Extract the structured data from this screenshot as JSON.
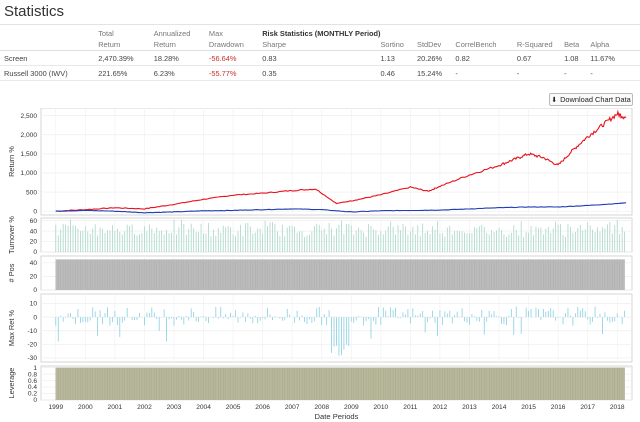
{
  "page_title": "Statistics",
  "table": {
    "header_top": [
      "",
      "Total",
      "Annualized",
      "Max",
      "Risk Statistics (MONTHLY Period)",
      "",
      "",
      "",
      "",
      "",
      ""
    ],
    "header_bottom": [
      "",
      "Return",
      "Return",
      "Drawdown",
      "Sharpe",
      "Sortino",
      "StdDev",
      "CorrelBench",
      "R-Squared",
      "Beta",
      "Alpha"
    ],
    "rows": [
      [
        "Screen",
        "2,470.39%",
        "18.28%",
        "-56.64%",
        "0.83",
        "1.13",
        "20.26%",
        "0.82",
        "0.67",
        "1.08",
        "11.67%"
      ],
      [
        "Russell 3000 (IWV)",
        "221.65%",
        "6.23%",
        "-55.77%",
        "0.35",
        "0.46",
        "15.24%",
        "-",
        "-",
        "-",
        "-"
      ]
    ]
  },
  "download_button": {
    "label": "Download Chart Data",
    "icon": "download-icon"
  },
  "colors": {
    "screen": "#e8101a",
    "benchmark": "#1f3fb8",
    "turnover": "#a9d6c6",
    "positions": "#bbbbbb",
    "maxret": "#86cfe3",
    "leverage": "#b7b79b"
  },
  "chart_data": [
    {
      "type": "line",
      "ylabel": "Return %",
      "yticks": [
        0,
        500,
        1000,
        1500,
        2000,
        2500
      ],
      "ylim": [
        -100,
        2700
      ],
      "series": [
        {
          "name": "Screen",
          "x": [
            1999,
            2000,
            2001,
            2002,
            2003,
            2004,
            2005,
            2006,
            2007,
            2007.8,
            2008.5,
            2009.2,
            2010,
            2011,
            2011.6,
            2012,
            2013,
            2014,
            2014.5,
            2015,
            2015.5,
            2016,
            2016.5,
            2017,
            2017.5,
            2018,
            2018.3
          ],
          "values": [
            0,
            40,
            90,
            60,
            180,
            310,
            420,
            470,
            540,
            580,
            200,
            300,
            430,
            630,
            520,
            650,
            950,
            1200,
            1350,
            1500,
            1400,
            1200,
            1600,
            1950,
            2250,
            2550,
            2450
          ]
        },
        {
          "name": "Russell 3000 (IWV)",
          "x": [
            1999,
            2000,
            2001,
            2002,
            2003,
            2004,
            2005,
            2006,
            2007,
            2008,
            2009,
            2010,
            2011,
            2012,
            2013,
            2014,
            2015,
            2016,
            2017,
            2018,
            2018.3
          ],
          "values": [
            0,
            20,
            0,
            -40,
            -20,
            10,
            20,
            40,
            60,
            40,
            -20,
            10,
            20,
            30,
            60,
            90,
            110,
            110,
            150,
            200,
            220
          ]
        }
      ]
    },
    {
      "type": "bar",
      "ylabel": "Turnover %",
      "yticks": [
        0,
        20,
        40,
        60
      ],
      "ylim": [
        0,
        65
      ],
      "values": [
        52,
        46,
        58,
        49,
        53,
        47,
        55,
        50
      ]
    },
    {
      "type": "area",
      "ylabel": "# Pos",
      "yticks": [
        0,
        20,
        40
      ],
      "ylim": [
        0,
        50
      ],
      "values": [
        45,
        45
      ]
    },
    {
      "type": "bar",
      "ylabel": "Max Ret %",
      "yticks": [
        -30,
        -20,
        -10,
        0,
        10
      ],
      "ylim": [
        -33,
        17
      ],
      "values": [
        8,
        -5,
        12,
        -9,
        5,
        -3,
        14,
        -7,
        6,
        -28
      ]
    },
    {
      "type": "area",
      "ylabel": "Leverage",
      "yticks": [
        0,
        0.2,
        0.4,
        0.6,
        0.8,
        1.0
      ],
      "ylim": [
        0,
        1.05
      ],
      "values": [
        1,
        1
      ]
    }
  ],
  "x_axis": {
    "label": "Date Periods",
    "ticks": [
      "1999",
      "2000",
      "2001",
      "2002",
      "2003",
      "2004",
      "2005",
      "2006",
      "2007",
      "2008",
      "2009",
      "2010",
      "2011",
      "2012",
      "2013",
      "2014",
      "2015",
      "2016",
      "2017",
      "2018"
    ],
    "range": [
      1998.5,
      2018.5
    ]
  }
}
